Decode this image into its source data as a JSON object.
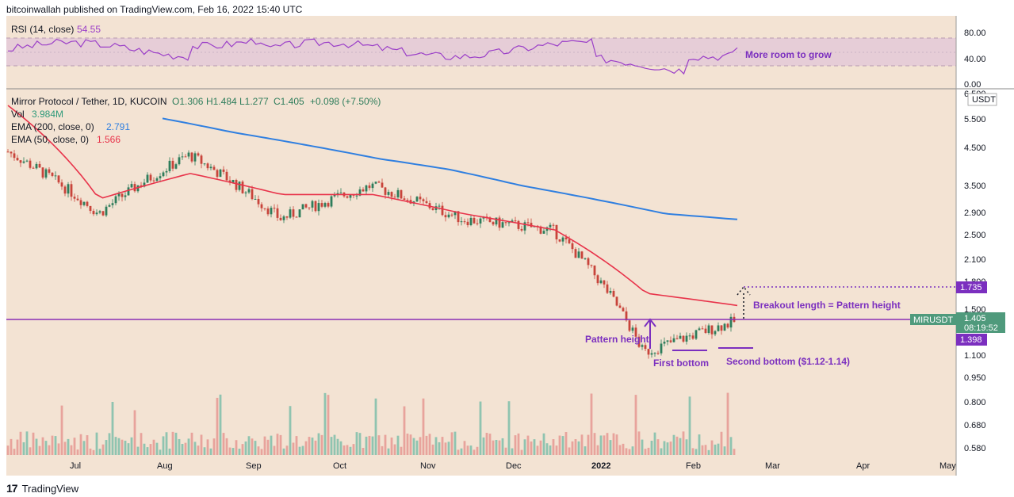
{
  "header": {
    "publisher": "bitcoinwallah published on TradingView.com, Feb 16, 2022 15:40 UTC"
  },
  "footer": {
    "brand": "TradingView"
  },
  "colors": {
    "bg": "#f3e3d3",
    "rsi": "#9b3fc8",
    "ema200": "#2f7fe0",
    "ema50": "#e8334a",
    "up": "#2e7d5b",
    "down": "#c8443b",
    "annotation": "#7b2fbf"
  },
  "rsi_panel": {
    "label": "RSI (14, close)",
    "value": "54.55",
    "annotation": "More room to grow",
    "ticks": [
      "80.00",
      "40.00",
      "0.00"
    ]
  },
  "main_panel": {
    "symbol_line": "Mirror Protocol / Tether, 1D, KUCOIN",
    "ohlc": {
      "o": "O1.306",
      "h": "H1.484",
      "l": "L1.277",
      "c": "C1.405",
      "chg": "+0.098 (+7.50%)"
    },
    "vol_label": "Vol",
    "vol_value": "3.984M",
    "ema200_label": "EMA (200, close, 0)",
    "ema200_value": "2.791",
    "ema50_label": "EMA (50, close, 0)",
    "ema50_value": "1.566",
    "currency": "USDT",
    "price_ticks": [
      "6.500",
      "5.500",
      "4.500",
      "3.500",
      "2.900",
      "2.500",
      "2.100",
      "1.800",
      "1.500",
      "1.100",
      "0.950",
      "0.800",
      "0.680",
      "0.580"
    ],
    "time_ticks": [
      "Jul",
      "Aug",
      "Sep",
      "Oct",
      "Nov",
      "Dec",
      "2022",
      "Feb",
      "Mar",
      "Apr",
      "May"
    ],
    "markers": {
      "target": "1.735",
      "symbol": "MIRUSDT",
      "last": "1.405",
      "countdown": "08:19:52",
      "neckline": "1.398"
    },
    "annotations": {
      "breakout": "Breakout length = Pattern height",
      "pattern_height": "Pattern height",
      "first_bottom": "First bottom",
      "second_bottom": "Second bottom ($1.12-1.14)"
    }
  },
  "chart_data": {
    "type": "line",
    "title": "Mirror Protocol / Tether, 1D, KUCOIN",
    "x": [
      "Jul",
      "Aug",
      "Sep",
      "Oct",
      "Nov",
      "Dec",
      "2022",
      "Feb",
      "Mar"
    ],
    "series": [
      {
        "name": "MIRUSDT",
        "values": [
          4.4,
          2.9,
          4.3,
          2.8,
          3.5,
          2.8,
          2.6,
          1.14,
          1.405
        ]
      },
      {
        "name": "EMA (200, close, 0)",
        "values": [
          5.5,
          5.0,
          4.6,
          4.2,
          3.9,
          3.5,
          3.2,
          2.9,
          2.791
        ]
      },
      {
        "name": "EMA (50, close, 0)",
        "values": [
          6.0,
          3.2,
          3.8,
          3.3,
          3.3,
          2.9,
          2.6,
          1.7,
          1.566
        ]
      }
    ],
    "ylabel": "USDT",
    "y_scale": "log",
    "ylim": [
      0.58,
      6.5
    ],
    "levels": {
      "neckline": 1.398,
      "target": 1.735,
      "last": 1.405,
      "double_bottom": [
        1.12,
        1.14
      ]
    },
    "rsi": {
      "value": 54.55,
      "ylim": [
        0,
        80
      ]
    }
  }
}
